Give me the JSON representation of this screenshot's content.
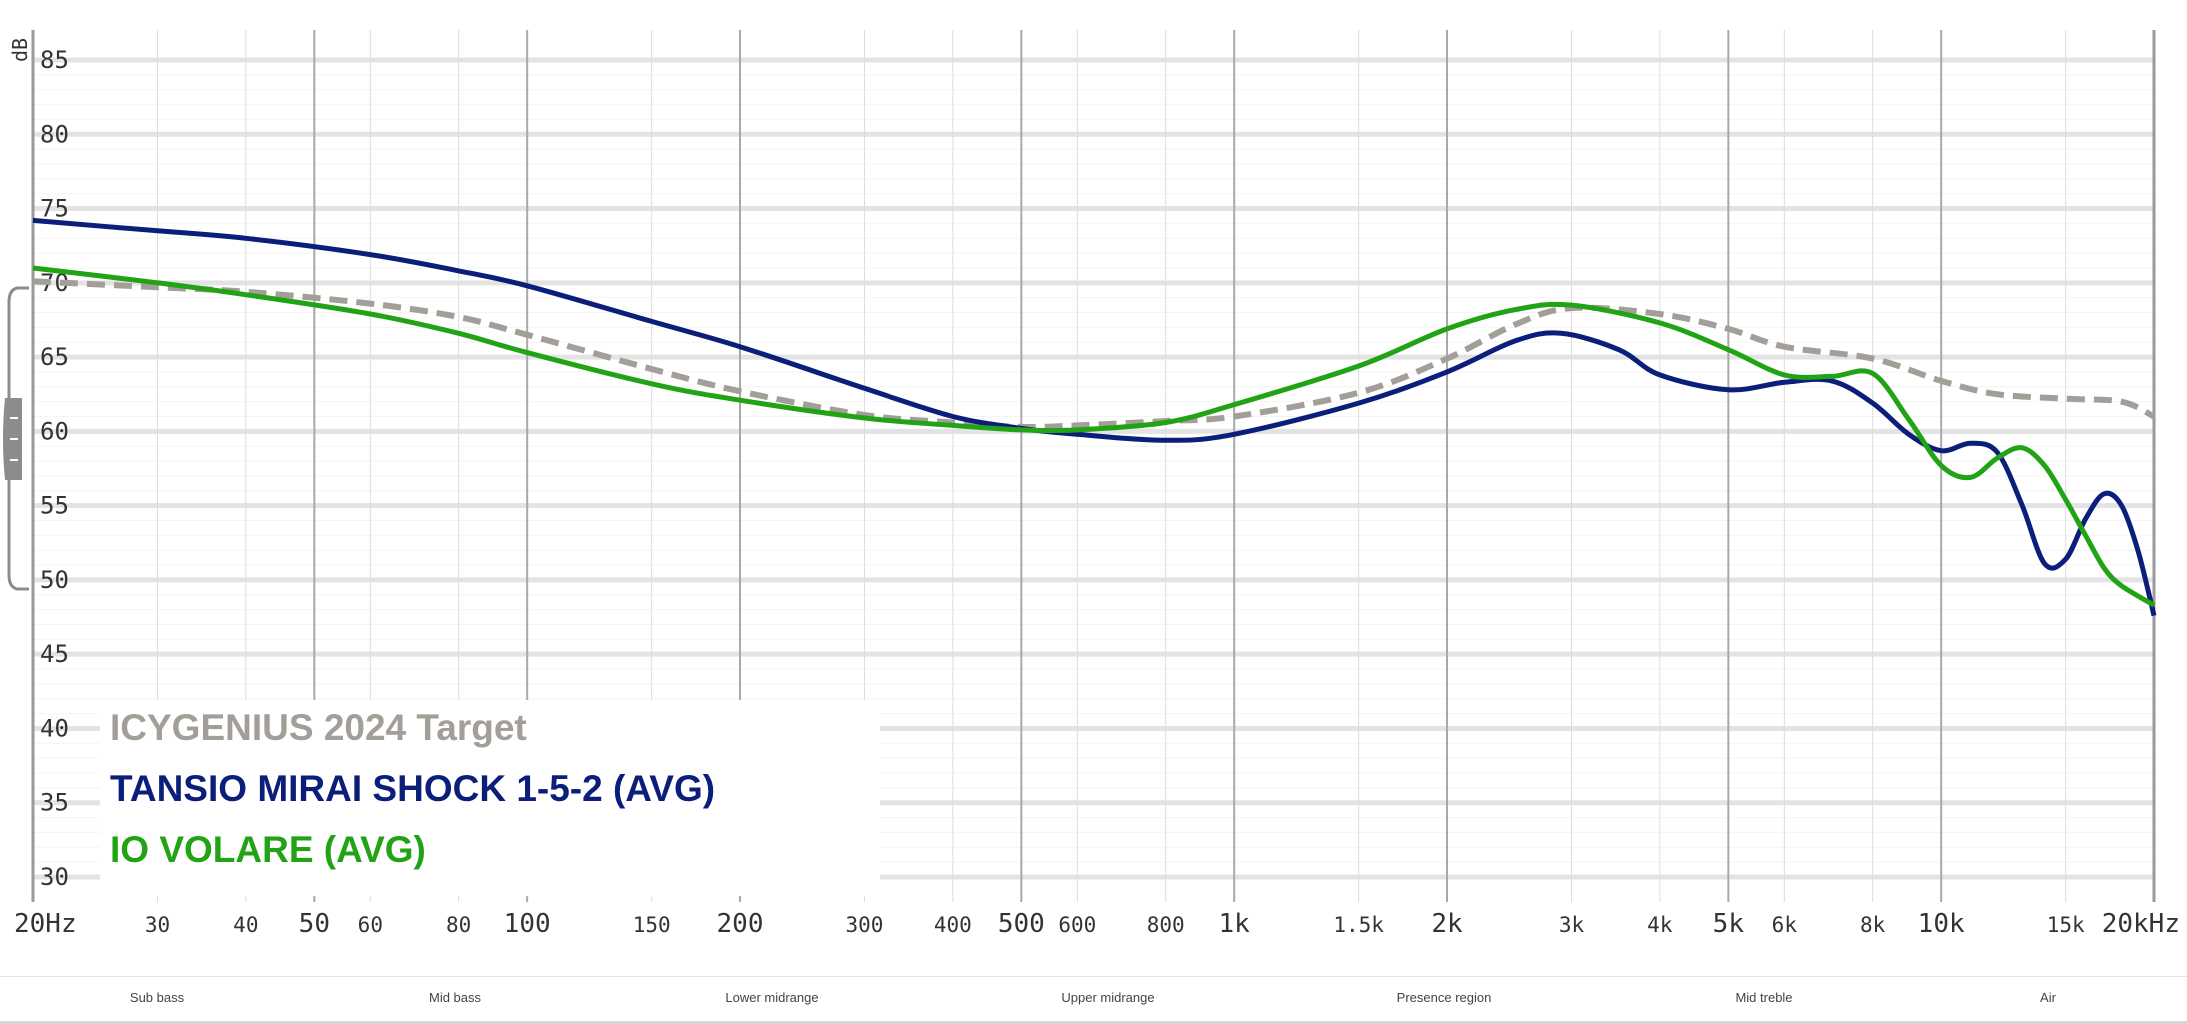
{
  "chart_data": {
    "type": "line",
    "ylabel": "dB",
    "xscale": "log",
    "xlim": [
      20,
      20000
    ],
    "ylim": [
      30,
      85
    ],
    "grid": true,
    "legend_position": "bottom-left",
    "y_ticks": [
      {
        "value": 30,
        "label": "30"
      },
      {
        "value": 35,
        "label": "35"
      },
      {
        "value": 40,
        "label": "40"
      },
      {
        "value": 45,
        "label": "45"
      },
      {
        "value": 50,
        "label": "50"
      },
      {
        "value": 55,
        "label": "55"
      },
      {
        "value": 60,
        "label": "60"
      },
      {
        "value": 65,
        "label": "65"
      },
      {
        "value": 70,
        "label": "70"
      },
      {
        "value": 75,
        "label": "75"
      },
      {
        "value": 80,
        "label": "80"
      },
      {
        "value": 85,
        "label": "85"
      }
    ],
    "x_ticks": [
      {
        "value": 20,
        "label": "20Hz",
        "major": true
      },
      {
        "value": 30,
        "label": "30",
        "major": false
      },
      {
        "value": 40,
        "label": "40",
        "major": false
      },
      {
        "value": 50,
        "label": "50",
        "major": true
      },
      {
        "value": 60,
        "label": "60",
        "major": false
      },
      {
        "value": 80,
        "label": "80",
        "major": false
      },
      {
        "value": 100,
        "label": "100",
        "major": true
      },
      {
        "value": 150,
        "label": "150",
        "major": false
      },
      {
        "value": 200,
        "label": "200",
        "major": true
      },
      {
        "value": 300,
        "label": "300",
        "major": false
      },
      {
        "value": 400,
        "label": "400",
        "major": false
      },
      {
        "value": 500,
        "label": "500",
        "major": true
      },
      {
        "value": 600,
        "label": "600",
        "major": false
      },
      {
        "value": 800,
        "label": "800",
        "major": false
      },
      {
        "value": 1000,
        "label": "1k",
        "major": true
      },
      {
        "value": 1500,
        "label": "1.5k",
        "major": false
      },
      {
        "value": 2000,
        "label": "2k",
        "major": true
      },
      {
        "value": 3000,
        "label": "3k",
        "major": false
      },
      {
        "value": 4000,
        "label": "4k",
        "major": false
      },
      {
        "value": 5000,
        "label": "5k",
        "major": true
      },
      {
        "value": 6000,
        "label": "6k",
        "major": false
      },
      {
        "value": 8000,
        "label": "8k",
        "major": false
      },
      {
        "value": 10000,
        "label": "10k",
        "major": true
      },
      {
        "value": 15000,
        "label": "15k",
        "major": false
      },
      {
        "value": 20000,
        "label": "20kHz",
        "major": true
      }
    ],
    "series": [
      {
        "name": "ICYGENIUS 2024 Target",
        "color": "#a39e97",
        "dashed": true,
        "points": [
          [
            20,
            70.1
          ],
          [
            30,
            69.7
          ],
          [
            40,
            69.4
          ],
          [
            60,
            68.6
          ],
          [
            80,
            67.7
          ],
          [
            100,
            66.5
          ],
          [
            150,
            64.2
          ],
          [
            200,
            62.7
          ],
          [
            300,
            61.1
          ],
          [
            400,
            60.6
          ],
          [
            500,
            60.3
          ],
          [
            600,
            60.4
          ],
          [
            800,
            60.7
          ],
          [
            1000,
            61.0
          ],
          [
            1500,
            62.6
          ],
          [
            2000,
            64.9
          ],
          [
            2500,
            67.2
          ],
          [
            3000,
            68.3
          ],
          [
            4000,
            67.9
          ],
          [
            5000,
            66.9
          ],
          [
            6000,
            65.7
          ],
          [
            8000,
            64.9
          ],
          [
            10000,
            63.4
          ],
          [
            12000,
            62.5
          ],
          [
            15000,
            62.2
          ],
          [
            18000,
            62.0
          ],
          [
            20000,
            61.0
          ]
        ]
      },
      {
        "name": "TANSIO MIRAI SHOCK 1-5-2 (AVG)",
        "color": "#0b1f7a",
        "dashed": false,
        "points": [
          [
            20,
            74.2
          ],
          [
            30,
            73.5
          ],
          [
            40,
            73.0
          ],
          [
            60,
            71.9
          ],
          [
            80,
            70.8
          ],
          [
            100,
            69.8
          ],
          [
            150,
            67.4
          ],
          [
            200,
            65.7
          ],
          [
            300,
            62.9
          ],
          [
            400,
            61.0
          ],
          [
            500,
            60.2
          ],
          [
            600,
            59.8
          ],
          [
            800,
            59.4
          ],
          [
            1000,
            59.8
          ],
          [
            1500,
            61.9
          ],
          [
            2000,
            64.0
          ],
          [
            2500,
            66.1
          ],
          [
            2900,
            66.6
          ],
          [
            3500,
            65.5
          ],
          [
            4000,
            63.8
          ],
          [
            5000,
            62.8
          ],
          [
            6000,
            63.3
          ],
          [
            7000,
            63.4
          ],
          [
            8000,
            61.9
          ],
          [
            9000,
            59.8
          ],
          [
            10000,
            58.7
          ],
          [
            11000,
            59.2
          ],
          [
            12000,
            58.6
          ],
          [
            13000,
            55.1
          ],
          [
            14000,
            51.1
          ],
          [
            15000,
            51.4
          ],
          [
            16000,
            54.1
          ],
          [
            17000,
            55.8
          ],
          [
            18000,
            55.0
          ],
          [
            19000,
            51.9
          ],
          [
            20000,
            47.6
          ]
        ]
      },
      {
        "name": "IO VOLARE (AVG)",
        "color": "#21a315",
        "dashed": false,
        "points": [
          [
            20,
            71.0
          ],
          [
            30,
            70.0
          ],
          [
            40,
            69.2
          ],
          [
            60,
            67.9
          ],
          [
            80,
            66.6
          ],
          [
            100,
            65.3
          ],
          [
            150,
            63.2
          ],
          [
            200,
            62.1
          ],
          [
            300,
            60.9
          ],
          [
            400,
            60.4
          ],
          [
            500,
            60.1
          ],
          [
            600,
            60.1
          ],
          [
            800,
            60.6
          ],
          [
            1000,
            61.8
          ],
          [
            1500,
            64.4
          ],
          [
            2000,
            66.9
          ],
          [
            2500,
            68.2
          ],
          [
            3000,
            68.5
          ],
          [
            4000,
            67.3
          ],
          [
            5000,
            65.5
          ],
          [
            6000,
            63.8
          ],
          [
            7000,
            63.7
          ],
          [
            8000,
            63.9
          ],
          [
            9000,
            60.8
          ],
          [
            10000,
            57.7
          ],
          [
            11000,
            56.9
          ],
          [
            12000,
            58.2
          ],
          [
            13000,
            58.9
          ],
          [
            14000,
            57.7
          ],
          [
            15000,
            55.4
          ],
          [
            16000,
            53.0
          ],
          [
            17000,
            50.8
          ],
          [
            18000,
            49.6
          ],
          [
            20000,
            48.3
          ]
        ]
      }
    ],
    "bands": [
      "Sub bass",
      "Mid bass",
      "Lower midrange",
      "Upper midrange",
      "Presence region",
      "Mid treble",
      "Air"
    ]
  }
}
